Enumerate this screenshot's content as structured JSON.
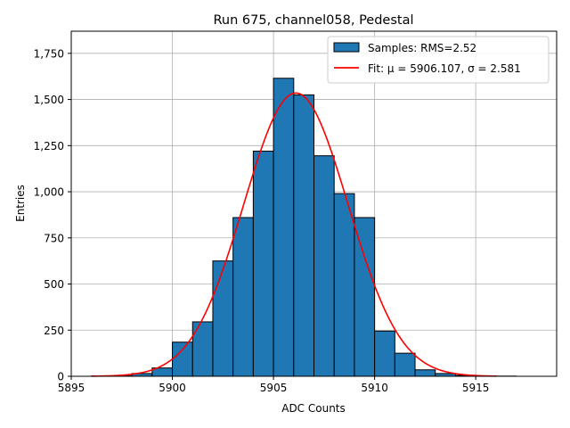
{
  "chart_data": {
    "type": "bar",
    "title": "Run 675, channel058, Pedestal",
    "xlabel": "ADC Counts",
    "ylabel": "Entries",
    "xlim": [
      5895,
      5919
    ],
    "ylim": [
      0,
      1870
    ],
    "xticks": [
      5895,
      5900,
      5905,
      5910,
      5915
    ],
    "yticks": [
      0,
      250,
      500,
      750,
      1000,
      1250,
      1500,
      1750
    ],
    "grid": true,
    "legend_position": "top-right",
    "colors": {
      "bars": "#1f77b4",
      "fit": "#ff0000",
      "grid": "#b0b0b0"
    },
    "series": [
      {
        "name": "Samples: RMS=2.52",
        "kind": "histogram",
        "bin_edges": [
          5896,
          5897,
          5898,
          5899,
          5900,
          5901,
          5902,
          5903,
          5904,
          5905,
          5906,
          5907,
          5908,
          5909,
          5910,
          5911,
          5912,
          5913,
          5914,
          5915,
          5916,
          5917,
          5918
        ],
        "values": [
          1,
          3,
          15,
          45,
          185,
          295,
          625,
          860,
          1220,
          1615,
          1525,
          1195,
          990,
          860,
          245,
          125,
          35,
          15,
          5,
          2,
          1,
          0
        ]
      },
      {
        "name": "Fit: μ = 5906.107, σ = 2.581",
        "kind": "gaussian",
        "mu": 5906.107,
        "sigma": 2.581,
        "amplitude": 1535,
        "x_range": [
          5896,
          5916
        ]
      }
    ]
  }
}
